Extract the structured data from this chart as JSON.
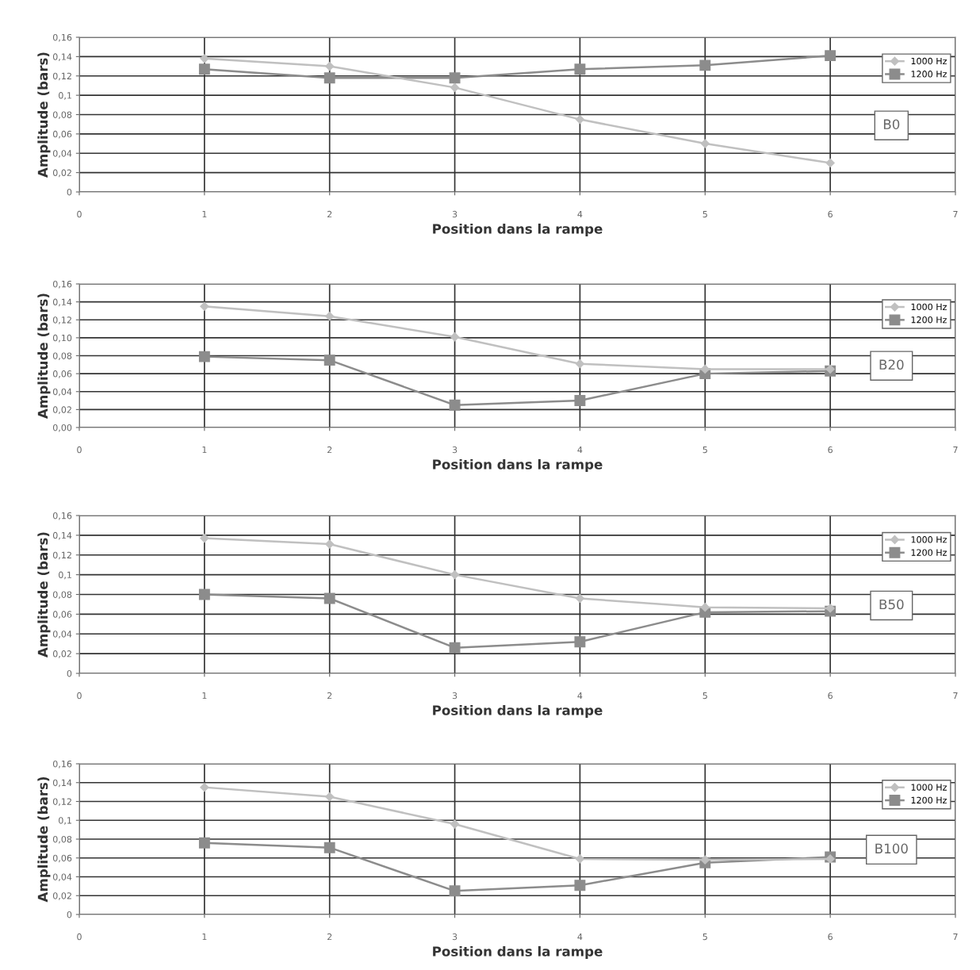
{
  "chart_data": [
    {
      "type": "line",
      "xlabel": "Position dans la rampe",
      "ylabel": "Amplitude (bars)",
      "annotations": [
        "B0"
      ],
      "xlim": [
        0,
        7
      ],
      "xticks": [
        0,
        1,
        2,
        3,
        4,
        5,
        6,
        7
      ],
      "ylim": [
        0,
        0.16
      ],
      "yticks": [
        {
          "value": 0,
          "label": "0"
        },
        {
          "value": 0.02,
          "label": "0,02"
        },
        {
          "value": 0.04,
          "label": "0,04"
        },
        {
          "value": 0.06,
          "label": "0,06"
        },
        {
          "value": 0.08,
          "label": "0,08"
        },
        {
          "value": 0.1,
          "label": "0,1"
        },
        {
          "value": 0.12,
          "label": "0,12"
        },
        {
          "value": 0.14,
          "label": "0,14"
        },
        {
          "value": 0.16,
          "label": "0,16"
        }
      ],
      "grid": true,
      "legend": "top right",
      "x": [
        1,
        2,
        3,
        4,
        5,
        6
      ],
      "series": [
        {
          "name": "1000 Hz",
          "color": "#c0c0c0",
          "marker": "diamond",
          "values": [
            0.138,
            0.13,
            0.108,
            0.075,
            0.05,
            0.03
          ]
        },
        {
          "name": "1200 Hz",
          "color": "#8c8c8c",
          "marker": "square",
          "values": [
            0.127,
            0.118,
            0.118,
            0.127,
            0.131,
            0.141
          ]
        }
      ]
    },
    {
      "type": "line",
      "xlabel": "Position dans la rampe",
      "ylabel": "Amplitude (bars)",
      "annotations": [
        "B20"
      ],
      "xlim": [
        0,
        7
      ],
      "xticks": [
        0,
        1,
        2,
        3,
        4,
        5,
        6,
        7
      ],
      "ylim": [
        0,
        0.16
      ],
      "yticks": [
        {
          "value": 0,
          "label": "0,00"
        },
        {
          "value": 0.02,
          "label": "0,02"
        },
        {
          "value": 0.04,
          "label": "0,04"
        },
        {
          "value": 0.06,
          "label": "0,06"
        },
        {
          "value": 0.08,
          "label": "0,08"
        },
        {
          "value": 0.1,
          "label": "0,10"
        },
        {
          "value": 0.12,
          "label": "0,12"
        },
        {
          "value": 0.14,
          "label": "0,14"
        },
        {
          "value": 0.16,
          "label": "0,16"
        }
      ],
      "grid": true,
      "legend": "top right",
      "x": [
        1,
        2,
        3,
        4,
        5,
        6
      ],
      "series": [
        {
          "name": "1000 Hz",
          "color": "#c0c0c0",
          "marker": "diamond",
          "values": [
            0.135,
            0.124,
            0.101,
            0.071,
            0.065,
            0.065
          ]
        },
        {
          "name": "1200 Hz",
          "color": "#8c8c8c",
          "marker": "square",
          "values": [
            0.079,
            0.075,
            0.025,
            0.03,
            0.06,
            0.063
          ]
        }
      ]
    },
    {
      "type": "line",
      "xlabel": "Position dans la rampe",
      "ylabel": "Amplitude (bars)",
      "annotations": [
        "B50"
      ],
      "xlim": [
        0,
        7
      ],
      "xticks": [
        0,
        1,
        2,
        3,
        4,
        5,
        6,
        7
      ],
      "ylim": [
        0,
        0.16
      ],
      "yticks": [
        {
          "value": 0,
          "label": "0"
        },
        {
          "value": 0.02,
          "label": "0,02"
        },
        {
          "value": 0.04,
          "label": "0,04"
        },
        {
          "value": 0.06,
          "label": "0,06"
        },
        {
          "value": 0.08,
          "label": "0,08"
        },
        {
          "value": 0.1,
          "label": "0,1"
        },
        {
          "value": 0.12,
          "label": "0,12"
        },
        {
          "value": 0.14,
          "label": "0,14"
        },
        {
          "value": 0.16,
          "label": "0,16"
        }
      ],
      "grid": true,
      "legend": "top right",
      "x": [
        1,
        2,
        3,
        4,
        5,
        6
      ],
      "series": [
        {
          "name": "1000 Hz",
          "color": "#c0c0c0",
          "marker": "diamond",
          "values": [
            0.137,
            0.131,
            0.1,
            0.076,
            0.067,
            0.066
          ]
        },
        {
          "name": "1200 Hz",
          "color": "#8c8c8c",
          "marker": "square",
          "values": [
            0.08,
            0.076,
            0.026,
            0.032,
            0.062,
            0.063
          ]
        }
      ]
    },
    {
      "type": "line",
      "xlabel": "Position dans la rampe",
      "ylabel": "Amplitude (bars)",
      "annotations": [
        "B100"
      ],
      "xlim": [
        0,
        7
      ],
      "xticks": [
        0,
        1,
        2,
        3,
        4,
        5,
        6,
        7
      ],
      "ylim": [
        0,
        0.16
      ],
      "yticks": [
        {
          "value": 0,
          "label": "0"
        },
        {
          "value": 0.02,
          "label": "0,02"
        },
        {
          "value": 0.04,
          "label": "0,04"
        },
        {
          "value": 0.06,
          "label": "0,06"
        },
        {
          "value": 0.08,
          "label": "0,08"
        },
        {
          "value": 0.1,
          "label": "0,1"
        },
        {
          "value": 0.12,
          "label": "0,12"
        },
        {
          "value": 0.14,
          "label": "0,14"
        },
        {
          "value": 0.16,
          "label": "0,16"
        }
      ],
      "grid": true,
      "legend": "top right",
      "x": [
        1,
        2,
        3,
        4,
        5,
        6
      ],
      "series": [
        {
          "name": "1000 Hz",
          "color": "#c0c0c0",
          "marker": "diamond",
          "values": [
            0.135,
            0.125,
            0.096,
            0.059,
            0.058,
            0.059
          ]
        },
        {
          "name": "1200 Hz",
          "color": "#8c8c8c",
          "marker": "square",
          "values": [
            0.076,
            0.071,
            0.025,
            0.031,
            0.055,
            0.061
          ]
        }
      ]
    }
  ]
}
